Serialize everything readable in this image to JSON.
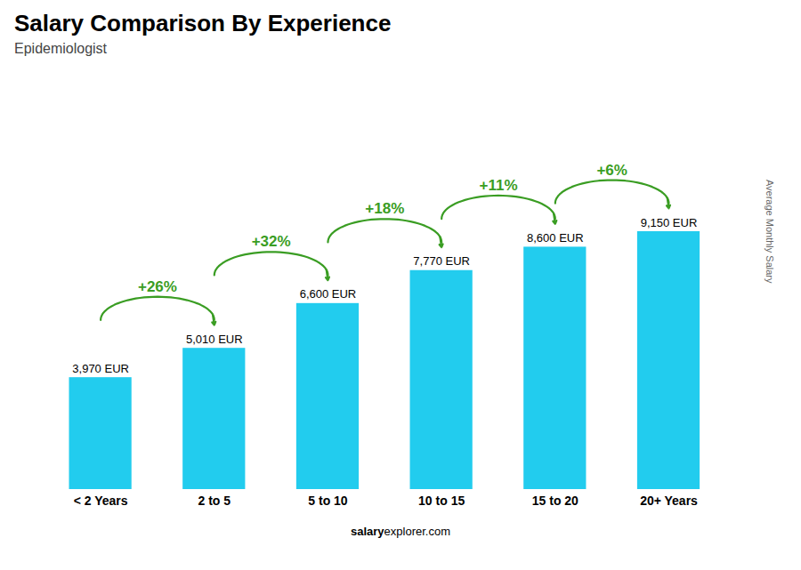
{
  "chart_data": {
    "type": "bar",
    "title": "Salary Comparison By Experience",
    "subtitle": "Epidemiologist",
    "ylabel": "Average Monthly Salary",
    "caption": [
      "salary",
      "explorer.com"
    ],
    "categories": [
      "< 2 Years",
      "2 to 5",
      "5 to 10",
      "10 to 15",
      "15 to 20",
      "20+ Years"
    ],
    "values": [
      3970,
      5010,
      6600,
      7770,
      8600,
      9150
    ],
    "value_labels": [
      "3,970 EUR",
      "5,010 EUR",
      "6,600 EUR",
      "7,770 EUR",
      "8,600 EUR",
      "9,150 EUR"
    ],
    "data_labels": true,
    "annotations": [
      "+26%",
      "+32%",
      "+18%",
      "+11%",
      "+6%"
    ],
    "color": "#22CCEE",
    "ylim": [
      0,
      14640
    ],
    "tick_labels": "x",
    "grid": false
  }
}
